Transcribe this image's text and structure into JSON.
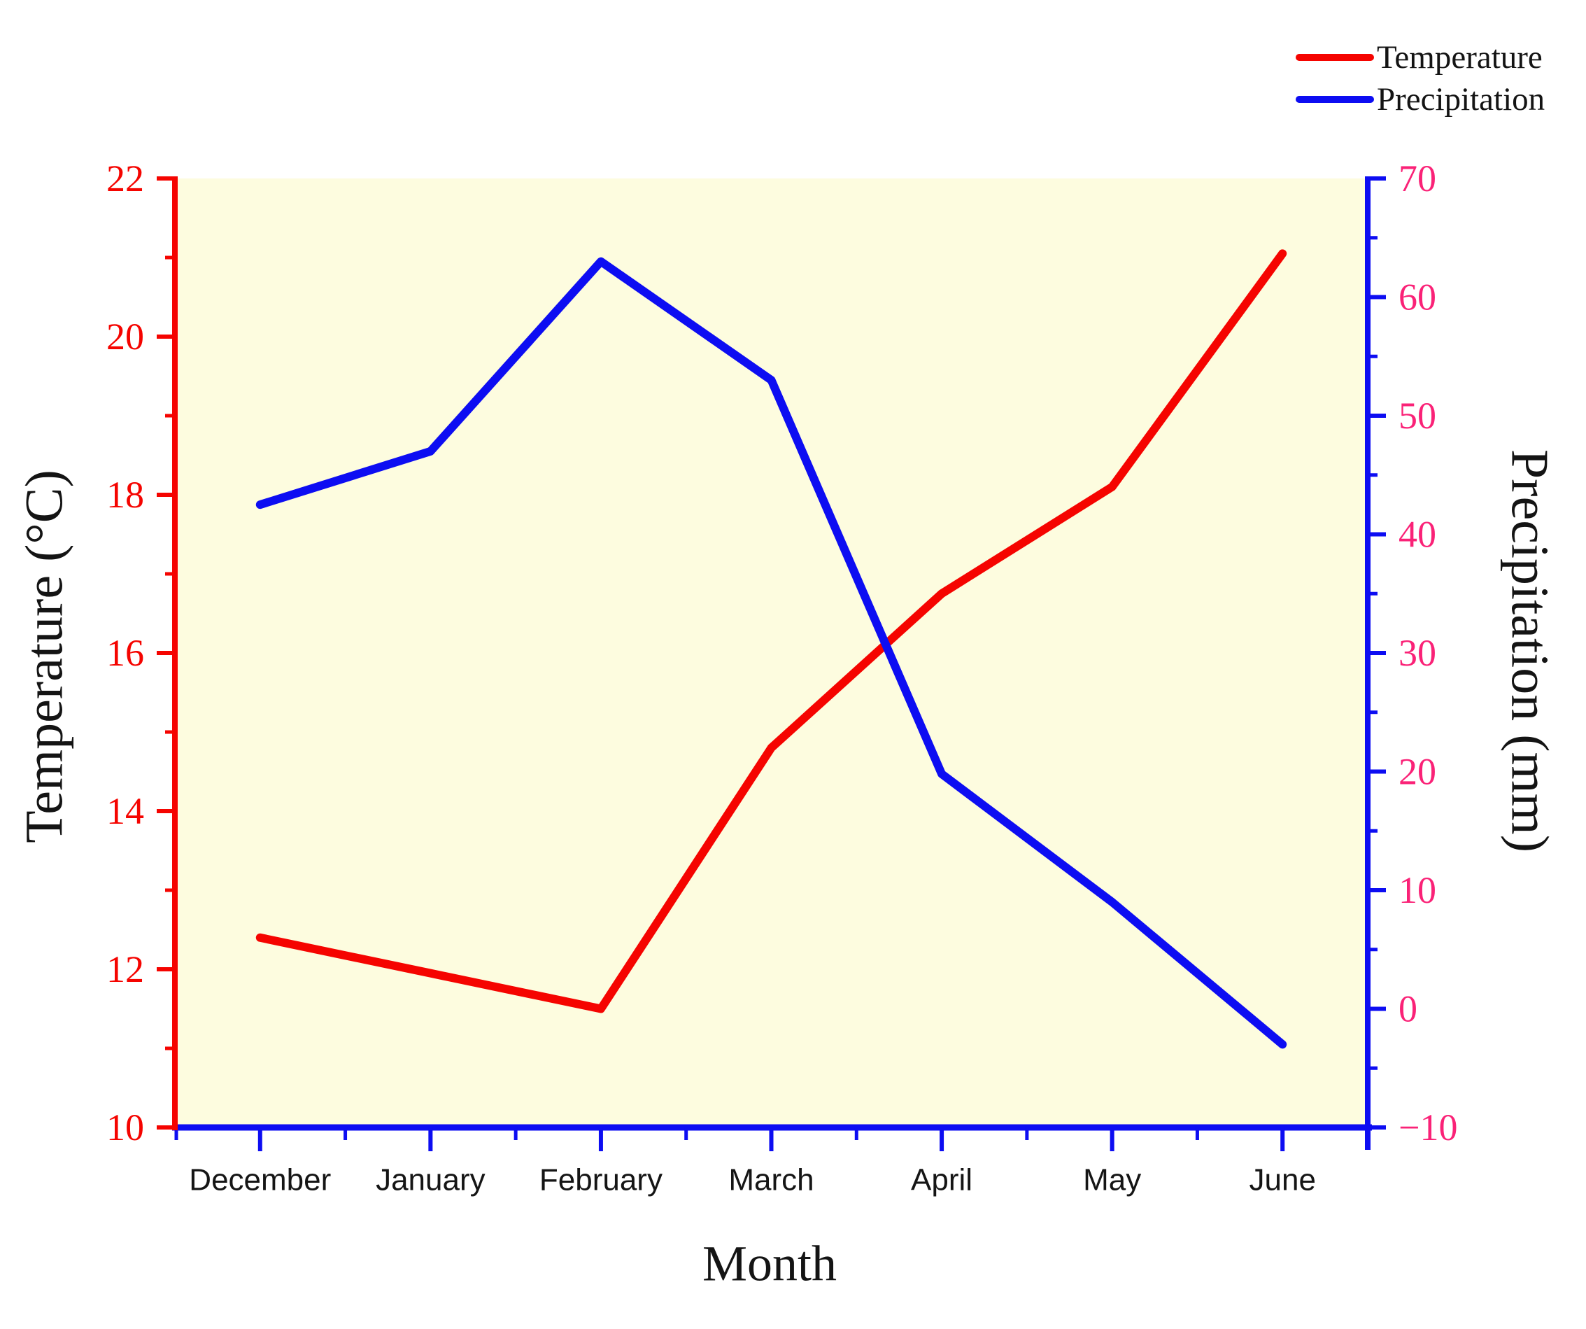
{
  "legend": {
    "items": [
      {
        "label": "Temperature",
        "color": "#f50400"
      },
      {
        "label": "Precipitation",
        "color": "#0d0df2"
      }
    ]
  },
  "titles": {
    "left_axis": "Temperature (°C)",
    "right_axis": "Precipitation (mm)",
    "x_axis": "Month"
  },
  "chart_data": {
    "type": "line",
    "categories": [
      "December",
      "January",
      "February",
      "March",
      "April",
      "May",
      "June"
    ],
    "series": [
      {
        "name": "Temperature",
        "axis": "left",
        "color": "#f50400",
        "values": [
          12.4,
          11.95,
          11.5,
          14.8,
          16.75,
          18.1,
          21.05
        ]
      },
      {
        "name": "Precipitation",
        "axis": "right",
        "color": "#0d0df2",
        "values": [
          42.5,
          47,
          63,
          53,
          19.8,
          9,
          -3
        ]
      }
    ],
    "xlabel": "Month",
    "left_axis": {
      "label": "Temperature (°C)",
      "min": 10,
      "max": 22,
      "major_step": 2,
      "minor_step": 1,
      "ticks": [
        22,
        20,
        18,
        16,
        14,
        12,
        10
      ],
      "axis_color": "#f50400",
      "tick_label_color": "#f50400"
    },
    "right_axis": {
      "label": "Precipitation (mm)",
      "min": -10,
      "max": 70,
      "major_step": 10,
      "minor_step": 5,
      "ticks": [
        70,
        60,
        50,
        40,
        30,
        20,
        10,
        0,
        -10
      ],
      "axis_color": "#0d0df2",
      "tick_label_color": "#fa2277"
    },
    "x_axis": {
      "axis_color": "#0d0df2",
      "tick_label_color": "#151515"
    },
    "plot_bg": "#fdfcdf",
    "grid": false,
    "legend_position": "top-right"
  }
}
